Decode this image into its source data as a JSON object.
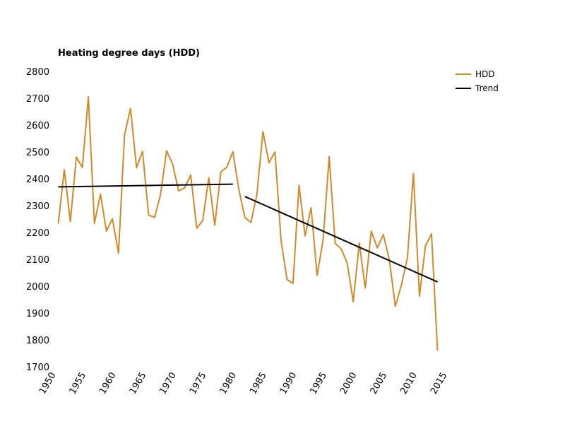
{
  "chart_data": {
    "type": "line",
    "title": "",
    "ylabel": "Heating degree days (HDD)",
    "xlabel": "",
    "xlim": [
      1950,
      2015
    ],
    "ylim": [
      1700,
      2800
    ],
    "x_ticks": [
      1950,
      1955,
      1960,
      1965,
      1970,
      1975,
      1980,
      1985,
      1990,
      1995,
      2000,
      2005,
      2010,
      2015
    ],
    "y_ticks": [
      1700,
      1800,
      1900,
      2000,
      2100,
      2200,
      2300,
      2400,
      2500,
      2600,
      2700,
      2800
    ],
    "grid": false,
    "legend_position": "top-right",
    "series": [
      {
        "name": "HDD",
        "color": "#D08A2A",
        "x": [
          1951,
          1952,
          1953,
          1954,
          1955,
          1956,
          1957,
          1958,
          1959,
          1960,
          1961,
          1962,
          1963,
          1964,
          1965,
          1966,
          1967,
          1968,
          1969,
          1970,
          1971,
          1972,
          1973,
          1974,
          1975,
          1976,
          1977,
          1978,
          1979,
          1980,
          1981,
          1982,
          1983,
          1984,
          1985,
          1986,
          1987,
          1988,
          1989,
          1990,
          1991,
          1992,
          1993,
          1994,
          1995,
          1996,
          1997,
          1998,
          1999,
          2000,
          2001,
          2002,
          2003,
          2004,
          2005,
          2006,
          2007,
          2008,
          2009,
          2010,
          2011,
          2012,
          2013,
          2014
        ],
        "values": [
          2233,
          2434,
          2241,
          2481,
          2442,
          2705,
          2234,
          2343,
          2205,
          2251,
          2123,
          2562,
          2662,
          2441,
          2502,
          2265,
          2256,
          2343,
          2504,
          2454,
          2355,
          2366,
          2414,
          2216,
          2245,
          2404,
          2227,
          2425,
          2443,
          2501,
          2360,
          2256,
          2238,
          2342,
          2576,
          2460,
          2500,
          2172,
          2025,
          2010,
          2376,
          2187,
          2292,
          2040,
          2172,
          2483,
          2160,
          2139,
          2086,
          1942,
          2161,
          1993,
          2205,
          2143,
          2192,
          2098,
          1925,
          2004,
          2106,
          2420,
          1963,
          2150,
          2195,
          1760
        ]
      },
      {
        "name": "Trend",
        "color": "#000000",
        "segments": [
          {
            "x": [
              1951,
              1980
            ],
            "values": [
              2370,
              2380
            ]
          },
          {
            "x": [
              1982,
              2014
            ],
            "values": [
              2334,
              2016
            ]
          }
        ]
      }
    ]
  }
}
